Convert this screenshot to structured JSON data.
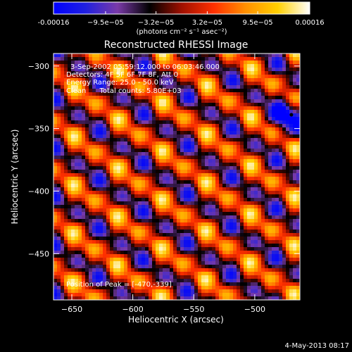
{
  "chart_data": {
    "type": "heatmap",
    "title": "Reconstructed RHESSI Image",
    "xlabel": "Heliocentric X (arcsec)",
    "ylabel": "Heliocentric Y (arcsec)",
    "xlim": [
      -665,
      -463
    ],
    "ylim": [
      -487,
      -290
    ],
    "x_ticks": [
      -650,
      -600,
      -550,
      -500
    ],
    "y_ticks": [
      -300,
      -350,
      -400,
      -450
    ],
    "colorbar": {
      "range": [
        -0.00016,
        0.00016
      ],
      "tick_values": [
        -0.00016,
        -9.5e-05,
        -3.2e-05,
        3.2e-05,
        9.5e-05,
        0.00016
      ],
      "tick_labels": [
        "-0.00016",
        "−9.5e−05",
        "−3.2e−05",
        "3.2e−05",
        "9.5e−05",
        "0.00016"
      ],
      "unit_label": "(photons cm⁻² s⁻¹ asec⁻²)",
      "colors": [
        "#0000ff",
        "#2020e0",
        "#7a3aa8",
        "#000000",
        "#a01000",
        "#ff3000",
        "#ff9000",
        "#ffd000",
        "#ffffff"
      ]
    },
    "annotations": [
      "3-Sep-2002 05:59:12.000 to 06:03:46.000",
      "Detectors: 4F 5F 6F 7F 8F, Att 0",
      "Energy Range: 25.0 - 50.0 keV",
      "Clean      Total counts: 5.80E+03"
    ],
    "peak_label": "Position of Peak = [-470,-339]",
    "peak": {
      "x": -470,
      "y": -339
    },
    "fringe_pattern": {
      "band_direction_deg": -35,
      "band_spacing_arcsec": 32,
      "secondary_spacing_arcsec": 22
    }
  },
  "footer": {
    "date": "4-May-2013 08:17"
  }
}
